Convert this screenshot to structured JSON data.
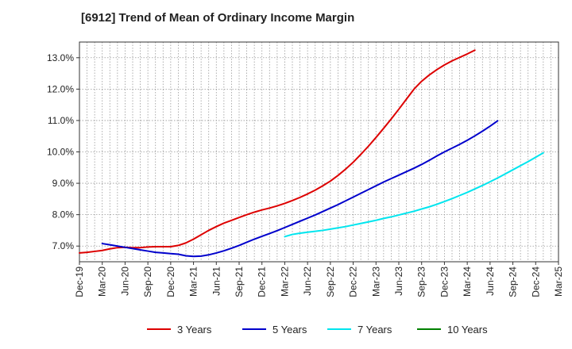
{
  "chart_data": {
    "type": "line",
    "title": "[6912]  Trend of Mean of Ordinary Income Margin",
    "xlabel": "",
    "ylabel": "",
    "x_ticks": [
      "Dec-19",
      "Mar-20",
      "Jun-20",
      "Sep-20",
      "Dec-20",
      "Mar-21",
      "Jun-21",
      "Sep-21",
      "Dec-21",
      "Mar-22",
      "Jun-22",
      "Sep-22",
      "Dec-22",
      "Mar-23",
      "Jun-23",
      "Sep-23",
      "Dec-23",
      "Mar-24",
      "Jun-24",
      "Sep-24",
      "Dec-24",
      "Mar-25"
    ],
    "y_ticks": [
      "7.0%",
      "8.0%",
      "9.0%",
      "10.0%",
      "11.0%",
      "12.0%",
      "13.0%"
    ],
    "ylim": [
      6.5,
      13.5
    ],
    "grid": true,
    "legend_position": "bottom",
    "series": [
      {
        "name": "3 Years",
        "color": "#dd0000",
        "start_index": 0,
        "values": [
          6.78,
          6.8,
          6.83,
          6.86,
          6.91,
          6.95,
          6.96,
          6.95,
          6.95,
          6.97,
          6.98,
          6.98,
          6.98,
          7.02,
          7.1,
          7.22,
          7.36,
          7.5,
          7.62,
          7.73,
          7.82,
          7.91,
          8.0,
          8.08,
          8.15,
          8.21,
          8.28,
          8.36,
          8.45,
          8.55,
          8.66,
          8.78,
          8.92,
          9.07,
          9.25,
          9.45,
          9.67,
          9.92,
          10.18,
          10.46,
          10.75,
          11.05,
          11.36,
          11.68,
          12.0,
          12.25,
          12.45,
          12.62,
          12.77,
          12.9,
          13.01,
          13.12,
          13.24
        ]
      },
      {
        "name": "5 Years",
        "color": "#0000cc",
        "start_index": 3,
        "values": [
          7.08,
          7.04,
          7.0,
          6.96,
          6.92,
          6.88,
          6.84,
          6.8,
          6.78,
          6.76,
          6.74,
          6.69,
          6.67,
          6.68,
          6.72,
          6.78,
          6.85,
          6.93,
          7.02,
          7.12,
          7.22,
          7.31,
          7.4,
          7.49,
          7.59,
          7.69,
          7.79,
          7.89,
          7.99,
          8.1,
          8.21,
          8.32,
          8.44,
          8.56,
          8.68,
          8.8,
          8.92,
          9.04,
          9.15,
          9.26,
          9.37,
          9.48,
          9.6,
          9.73,
          9.87,
          10.0,
          10.12,
          10.24,
          10.37,
          10.51,
          10.66,
          10.82,
          10.99
        ]
      },
      {
        "name": "7 Years",
        "color": "#00e5ee",
        "start_index": 27,
        "values": [
          7.3,
          7.37,
          7.41,
          7.44,
          7.47,
          7.5,
          7.54,
          7.58,
          7.62,
          7.67,
          7.72,
          7.77,
          7.82,
          7.88,
          7.93,
          7.99,
          8.05,
          8.11,
          8.18,
          8.25,
          8.33,
          8.42,
          8.51,
          8.61,
          8.71,
          8.82,
          8.93,
          9.05,
          9.17,
          9.3,
          9.43,
          9.56,
          9.69,
          9.83,
          9.97
        ]
      },
      {
        "name": "10 Years",
        "color": "#008000",
        "start_index": 0,
        "values": []
      }
    ]
  }
}
